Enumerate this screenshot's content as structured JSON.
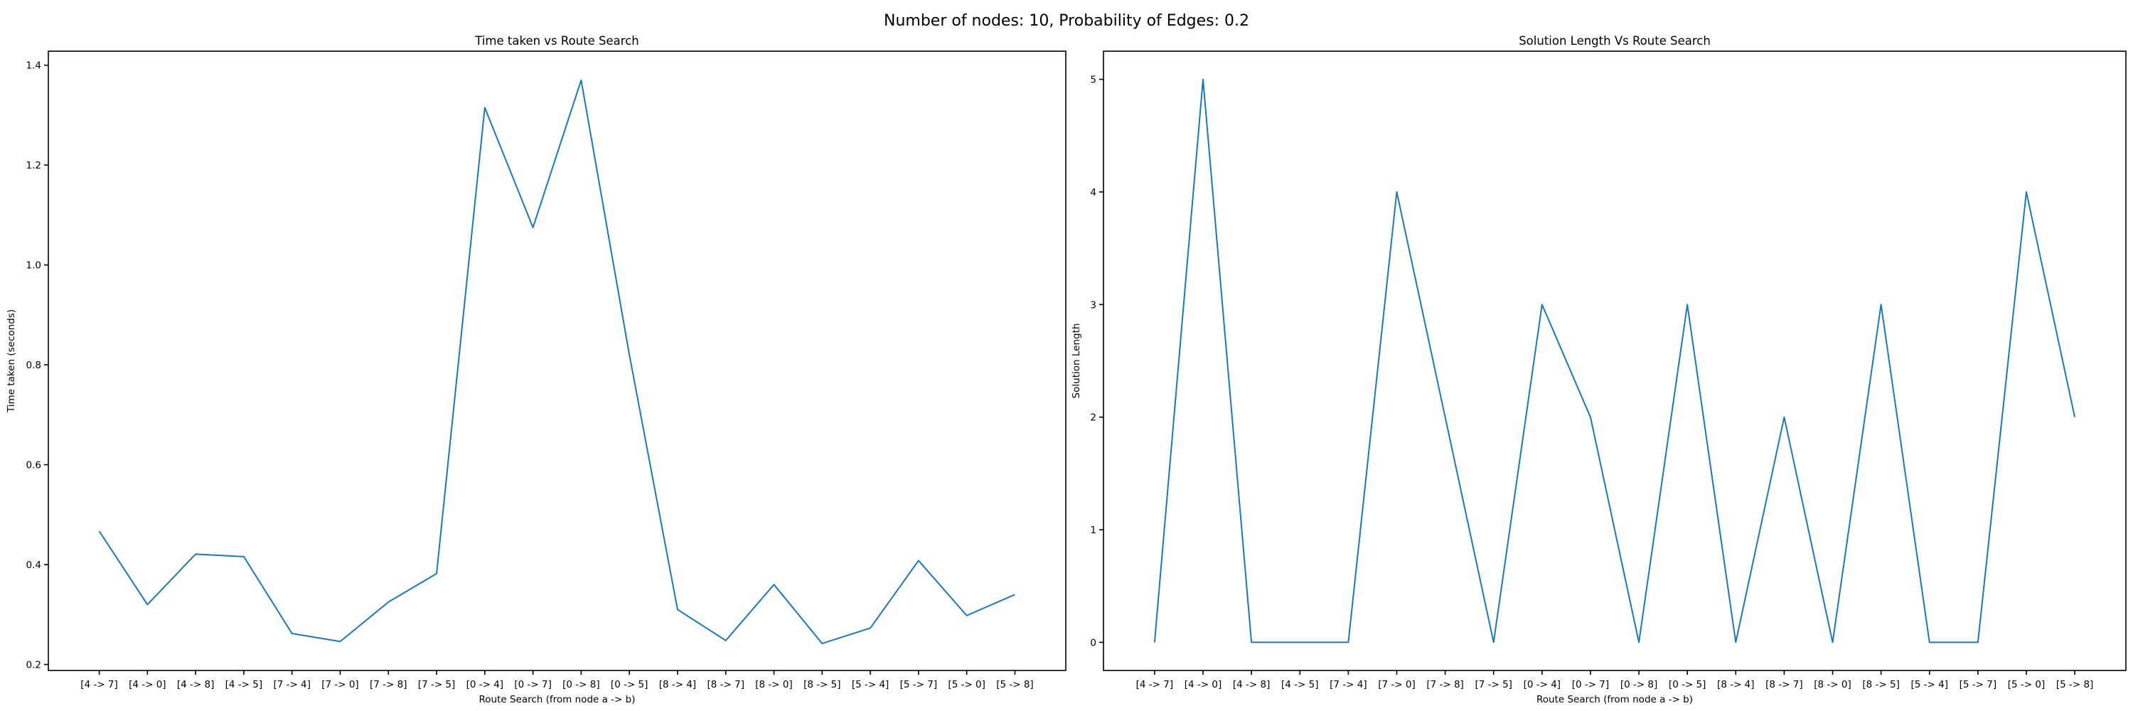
{
  "suptitle": "Number of nodes: 10, Probability of Edges: 0.2",
  "line_color": "#1f77b4",
  "chart_data": [
    {
      "type": "line",
      "title": "Time taken vs Route Search",
      "xlabel": "Route Search (from node a -> b)",
      "ylabel": "Time taken (seconds)",
      "categories": [
        "[4 -> 7]",
        "[4 -> 0]",
        "[4 -> 8]",
        "[4 -> 5]",
        "[7 -> 4]",
        "[7 -> 0]",
        "[7 -> 8]",
        "[7 -> 5]",
        "[0 -> 4]",
        "[0 -> 7]",
        "[0 -> 8]",
        "[0 -> 5]",
        "[8 -> 4]",
        "[8 -> 7]",
        "[8 -> 0]",
        "[8 -> 5]",
        "[5 -> 4]",
        "[5 -> 7]",
        "[5 -> 0]",
        "[5 -> 8]"
      ],
      "values": [
        0.467,
        0.32,
        0.421,
        0.416,
        0.262,
        0.246,
        0.325,
        0.382,
        1.315,
        1.075,
        1.37,
        0.82,
        0.31,
        0.248,
        0.36,
        0.242,
        0.273,
        0.408,
        0.298,
        0.34
      ],
      "yticks": [
        0.2,
        0.4,
        0.6,
        0.8,
        1.0,
        1.2,
        1.4
      ],
      "ytick_labels": [
        "0.2",
        "0.4",
        "0.6",
        "0.8",
        "1.0",
        "1.2",
        "1.4"
      ],
      "ylim": [
        0.188,
        1.428
      ],
      "grid": false
    },
    {
      "type": "line",
      "title": "Solution Length Vs Route Search",
      "xlabel": "Route Search (from node a -> b)",
      "ylabel": "Solution Length",
      "categories": [
        "[4 -> 7]",
        "[4 -> 0]",
        "[4 -> 8]",
        "[4 -> 5]",
        "[7 -> 4]",
        "[7 -> 0]",
        "[7 -> 8]",
        "[7 -> 5]",
        "[0 -> 4]",
        "[0 -> 7]",
        "[0 -> 8]",
        "[0 -> 5]",
        "[8 -> 4]",
        "[8 -> 7]",
        "[8 -> 0]",
        "[8 -> 5]",
        "[5 -> 4]",
        "[5 -> 7]",
        "[5 -> 0]",
        "[5 -> 8]"
      ],
      "values": [
        0,
        5,
        0,
        0,
        0,
        4,
        2,
        0,
        3,
        2,
        0,
        3,
        0,
        2,
        0,
        3,
        0,
        0,
        4,
        2
      ],
      "yticks": [
        0,
        1,
        2,
        3,
        4,
        5
      ],
      "ytick_labels": [
        "0",
        "1",
        "2",
        "3",
        "4",
        "5"
      ],
      "ylim": [
        -0.25,
        5.25
      ],
      "grid": false
    }
  ]
}
